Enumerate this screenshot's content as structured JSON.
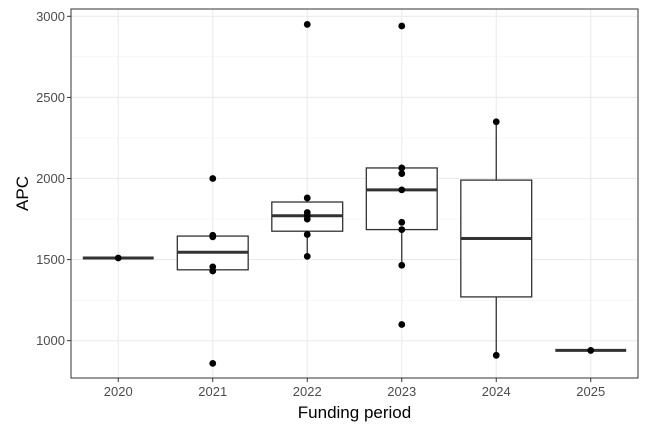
{
  "chart_data": {
    "type": "box",
    "title": "",
    "xlabel": "Funding period",
    "ylabel": "APC",
    "categories": [
      "2020",
      "2021",
      "2022",
      "2023",
      "2024",
      "2025"
    ],
    "ylim": [
      770,
      3045
    ],
    "yticks": [
      1000,
      1500,
      2000,
      2500,
      3000
    ],
    "grid": true,
    "boxes": [
      {
        "category": "2020",
        "q1": 1510,
        "median": 1510,
        "q3": 1510,
        "whisker_low": 1510,
        "whisker_high": 1510
      },
      {
        "category": "2021",
        "q1": 1437,
        "median": 1545,
        "q3": 1645,
        "whisker_low": 1437,
        "whisker_high": 1645
      },
      {
        "category": "2022",
        "q1": 1675,
        "median": 1770,
        "q3": 1855,
        "whisker_low": 1520,
        "whisker_high": 1880
      },
      {
        "category": "2023",
        "q1": 1685,
        "median": 1930,
        "q3": 2065,
        "whisker_low": 1465,
        "whisker_high": 2065
      },
      {
        "category": "2024",
        "q1": 1270,
        "median": 1630,
        "q3": 1990,
        "whisker_low": 910,
        "whisker_high": 2350
      },
      {
        "category": "2025",
        "q1": 940,
        "median": 940,
        "q3": 940,
        "whisker_low": 940,
        "whisker_high": 940
      }
    ],
    "points": [
      {
        "category": "2020",
        "values": [
          1510
        ]
      },
      {
        "category": "2021",
        "values": [
          2000,
          1650,
          1640,
          1455,
          1430,
          860
        ]
      },
      {
        "category": "2022",
        "values": [
          2950,
          1880,
          1790,
          1770,
          1750,
          1655,
          1520
        ]
      },
      {
        "category": "2023",
        "values": [
          2940,
          2065,
          2030,
          1930,
          1730,
          1685,
          1465,
          1100
        ]
      },
      {
        "category": "2024",
        "values": [
          2350,
          910
        ]
      },
      {
        "category": "2025",
        "values": [
          940
        ]
      }
    ]
  }
}
